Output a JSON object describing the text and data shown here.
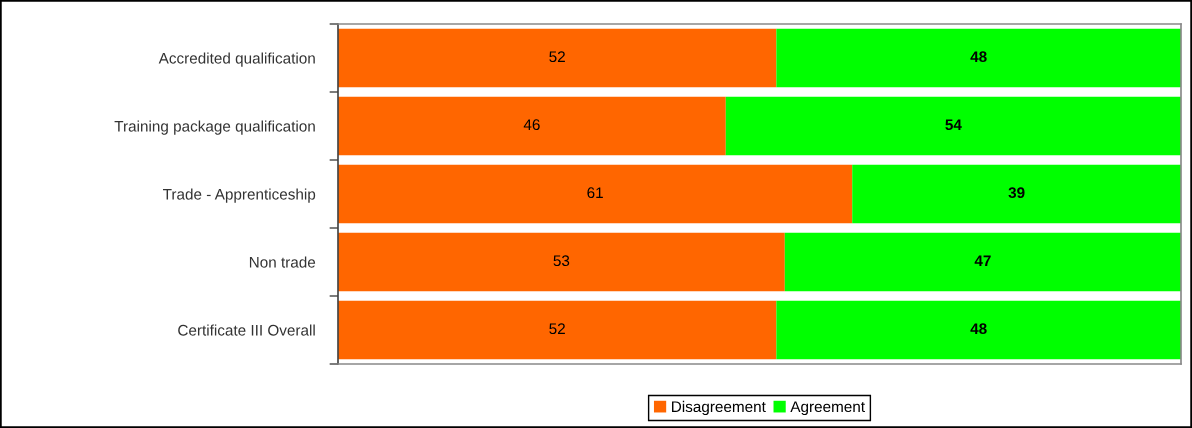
{
  "chart_data": {
    "type": "bar",
    "orientation": "horizontal",
    "stacked": true,
    "categories": [
      "Accredited qualification",
      "Training package qualification",
      "Trade - Apprenticeship",
      "Non trade",
      "Certificate III Overall"
    ],
    "series": [
      {
        "name": "Disagreement",
        "color": "#ff6600",
        "values": [
          52,
          46,
          61,
          53,
          52
        ]
      },
      {
        "name": "Agreement",
        "color": "#00ff00",
        "values": [
          48,
          54,
          39,
          47,
          48
        ]
      }
    ],
    "data_labels": true,
    "legend": "bottom",
    "grid": false
  }
}
